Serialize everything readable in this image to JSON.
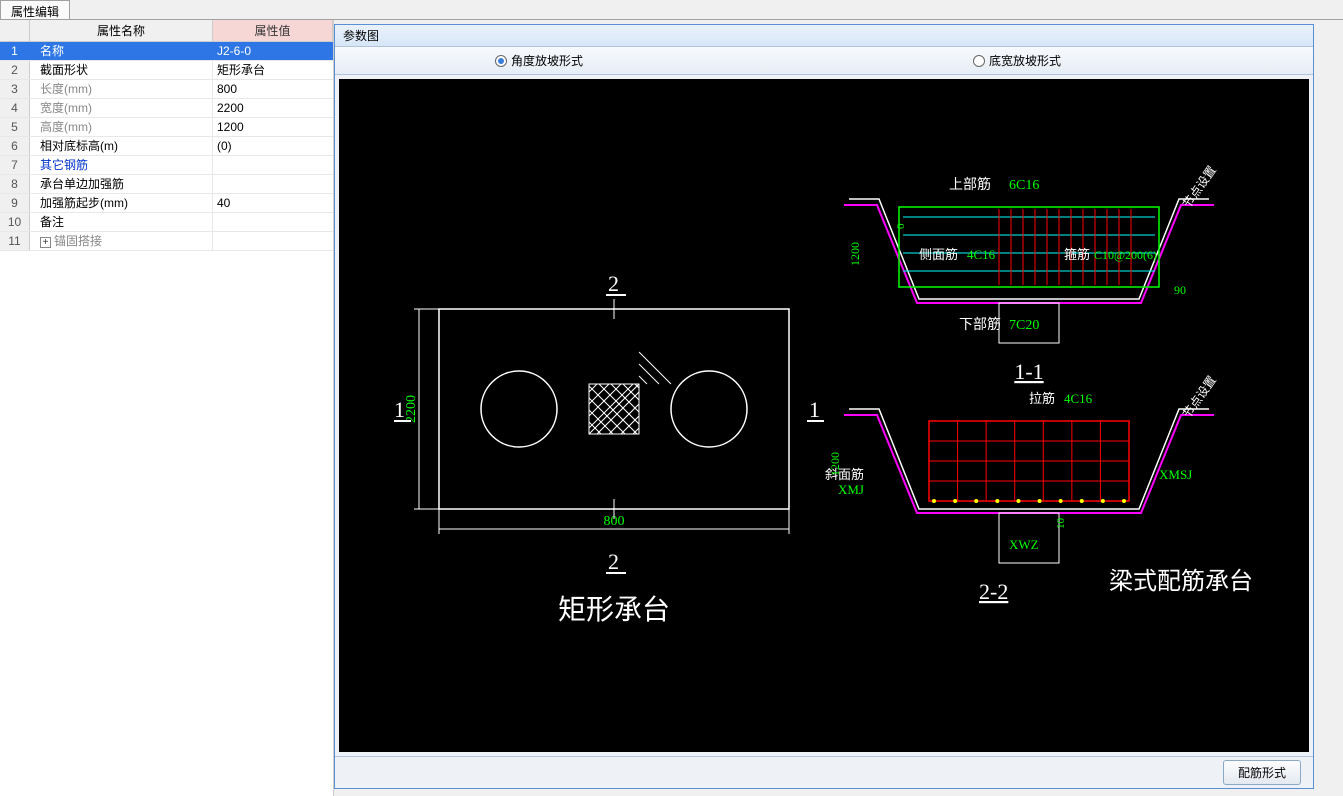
{
  "tab": {
    "label": "属性编辑"
  },
  "propTable": {
    "header": {
      "name": "属性名称",
      "value": "属性值"
    },
    "rows": [
      {
        "n": "1",
        "name": "名称",
        "value": "J2-6-0",
        "selected": true
      },
      {
        "n": "2",
        "name": "截面形状",
        "value": "矩形承台"
      },
      {
        "n": "3",
        "name": "长度(mm)",
        "value": "800",
        "gray": true
      },
      {
        "n": "4",
        "name": "宽度(mm)",
        "value": "2200",
        "gray": true
      },
      {
        "n": "5",
        "name": "高度(mm)",
        "value": "1200",
        "gray": true
      },
      {
        "n": "6",
        "name": "相对底标高(m)",
        "value": "(0)"
      },
      {
        "n": "7",
        "name": "其它钢筋",
        "value": "",
        "blue": true
      },
      {
        "n": "8",
        "name": "承台单边加强筋",
        "value": ""
      },
      {
        "n": "9",
        "name": "加强筋起步(mm)",
        "value": "40"
      },
      {
        "n": "10",
        "name": "备注",
        "value": ""
      },
      {
        "n": "11",
        "name": "锚固搭接",
        "value": "",
        "gray": true,
        "expand": true
      }
    ]
  },
  "diagram": {
    "title": "参数图",
    "radio1": "角度放坡形式",
    "radio2": "底宽放坡形式",
    "footerBtn": "配筋形式",
    "plan": {
      "title": "矩形承台",
      "width_label": "800",
      "height_label": "2200",
      "sec1": "1",
      "sec2": "2"
    },
    "sec11": {
      "title": "1-1",
      "top_label": "上部筋",
      "top_spec": "6C16",
      "side_label": "侧面筋",
      "side_spec": "4C16",
      "stirrup_label": "箍筋",
      "stirrup_spec": "C10@200(6)",
      "bottom_label": "下部筋",
      "bottom_spec": "7C20",
      "height": "1200",
      "zero": "0",
      "angle": "90",
      "node_label": "节点设置"
    },
    "sec22": {
      "title": "2-2",
      "side_title": "梁式配筋承台",
      "pull_label": "拉筋",
      "pull_spec": "4C16",
      "xmj": "XMJ",
      "xwz": "XWZ",
      "xmsj": "XMSJ",
      "slope_label": "斜面筋",
      "height": "1200",
      "ten": "10",
      "node_label": "节点设置"
    },
    "colors": {
      "white": "#ffffff",
      "green": "#00ff00",
      "cyan": "#00ffff",
      "red": "#ff0000",
      "yellow": "#ffff00",
      "magenta": "#ff00ff"
    }
  }
}
